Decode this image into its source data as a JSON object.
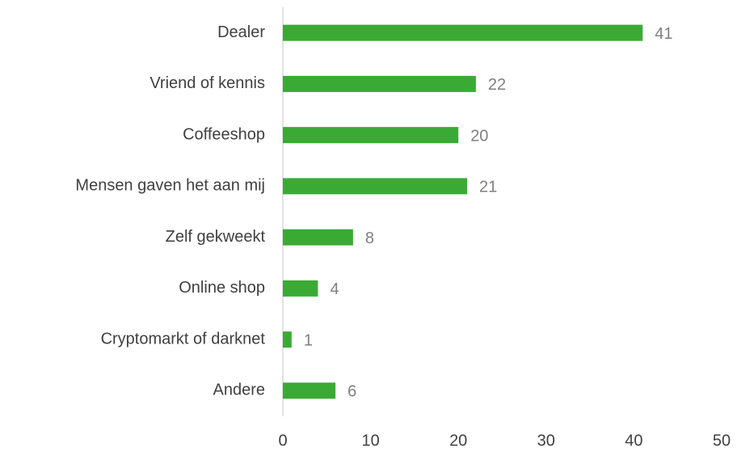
{
  "chart_data": {
    "type": "bar",
    "orientation": "horizontal",
    "categories": [
      "Dealer",
      "Vriend of kennis",
      "Coffeeshop",
      "Mensen gaven het aan mij",
      "Zelf gekweekt",
      "Online shop",
      "Cryptomarkt of darknet",
      "Andere"
    ],
    "values": [
      41,
      22,
      20,
      21,
      8,
      4,
      1,
      6
    ],
    "color": "#3aaa35",
    "xlim": [
      0,
      50
    ],
    "xticks": [
      0,
      10,
      20,
      30,
      40,
      50
    ],
    "grid": false
  }
}
